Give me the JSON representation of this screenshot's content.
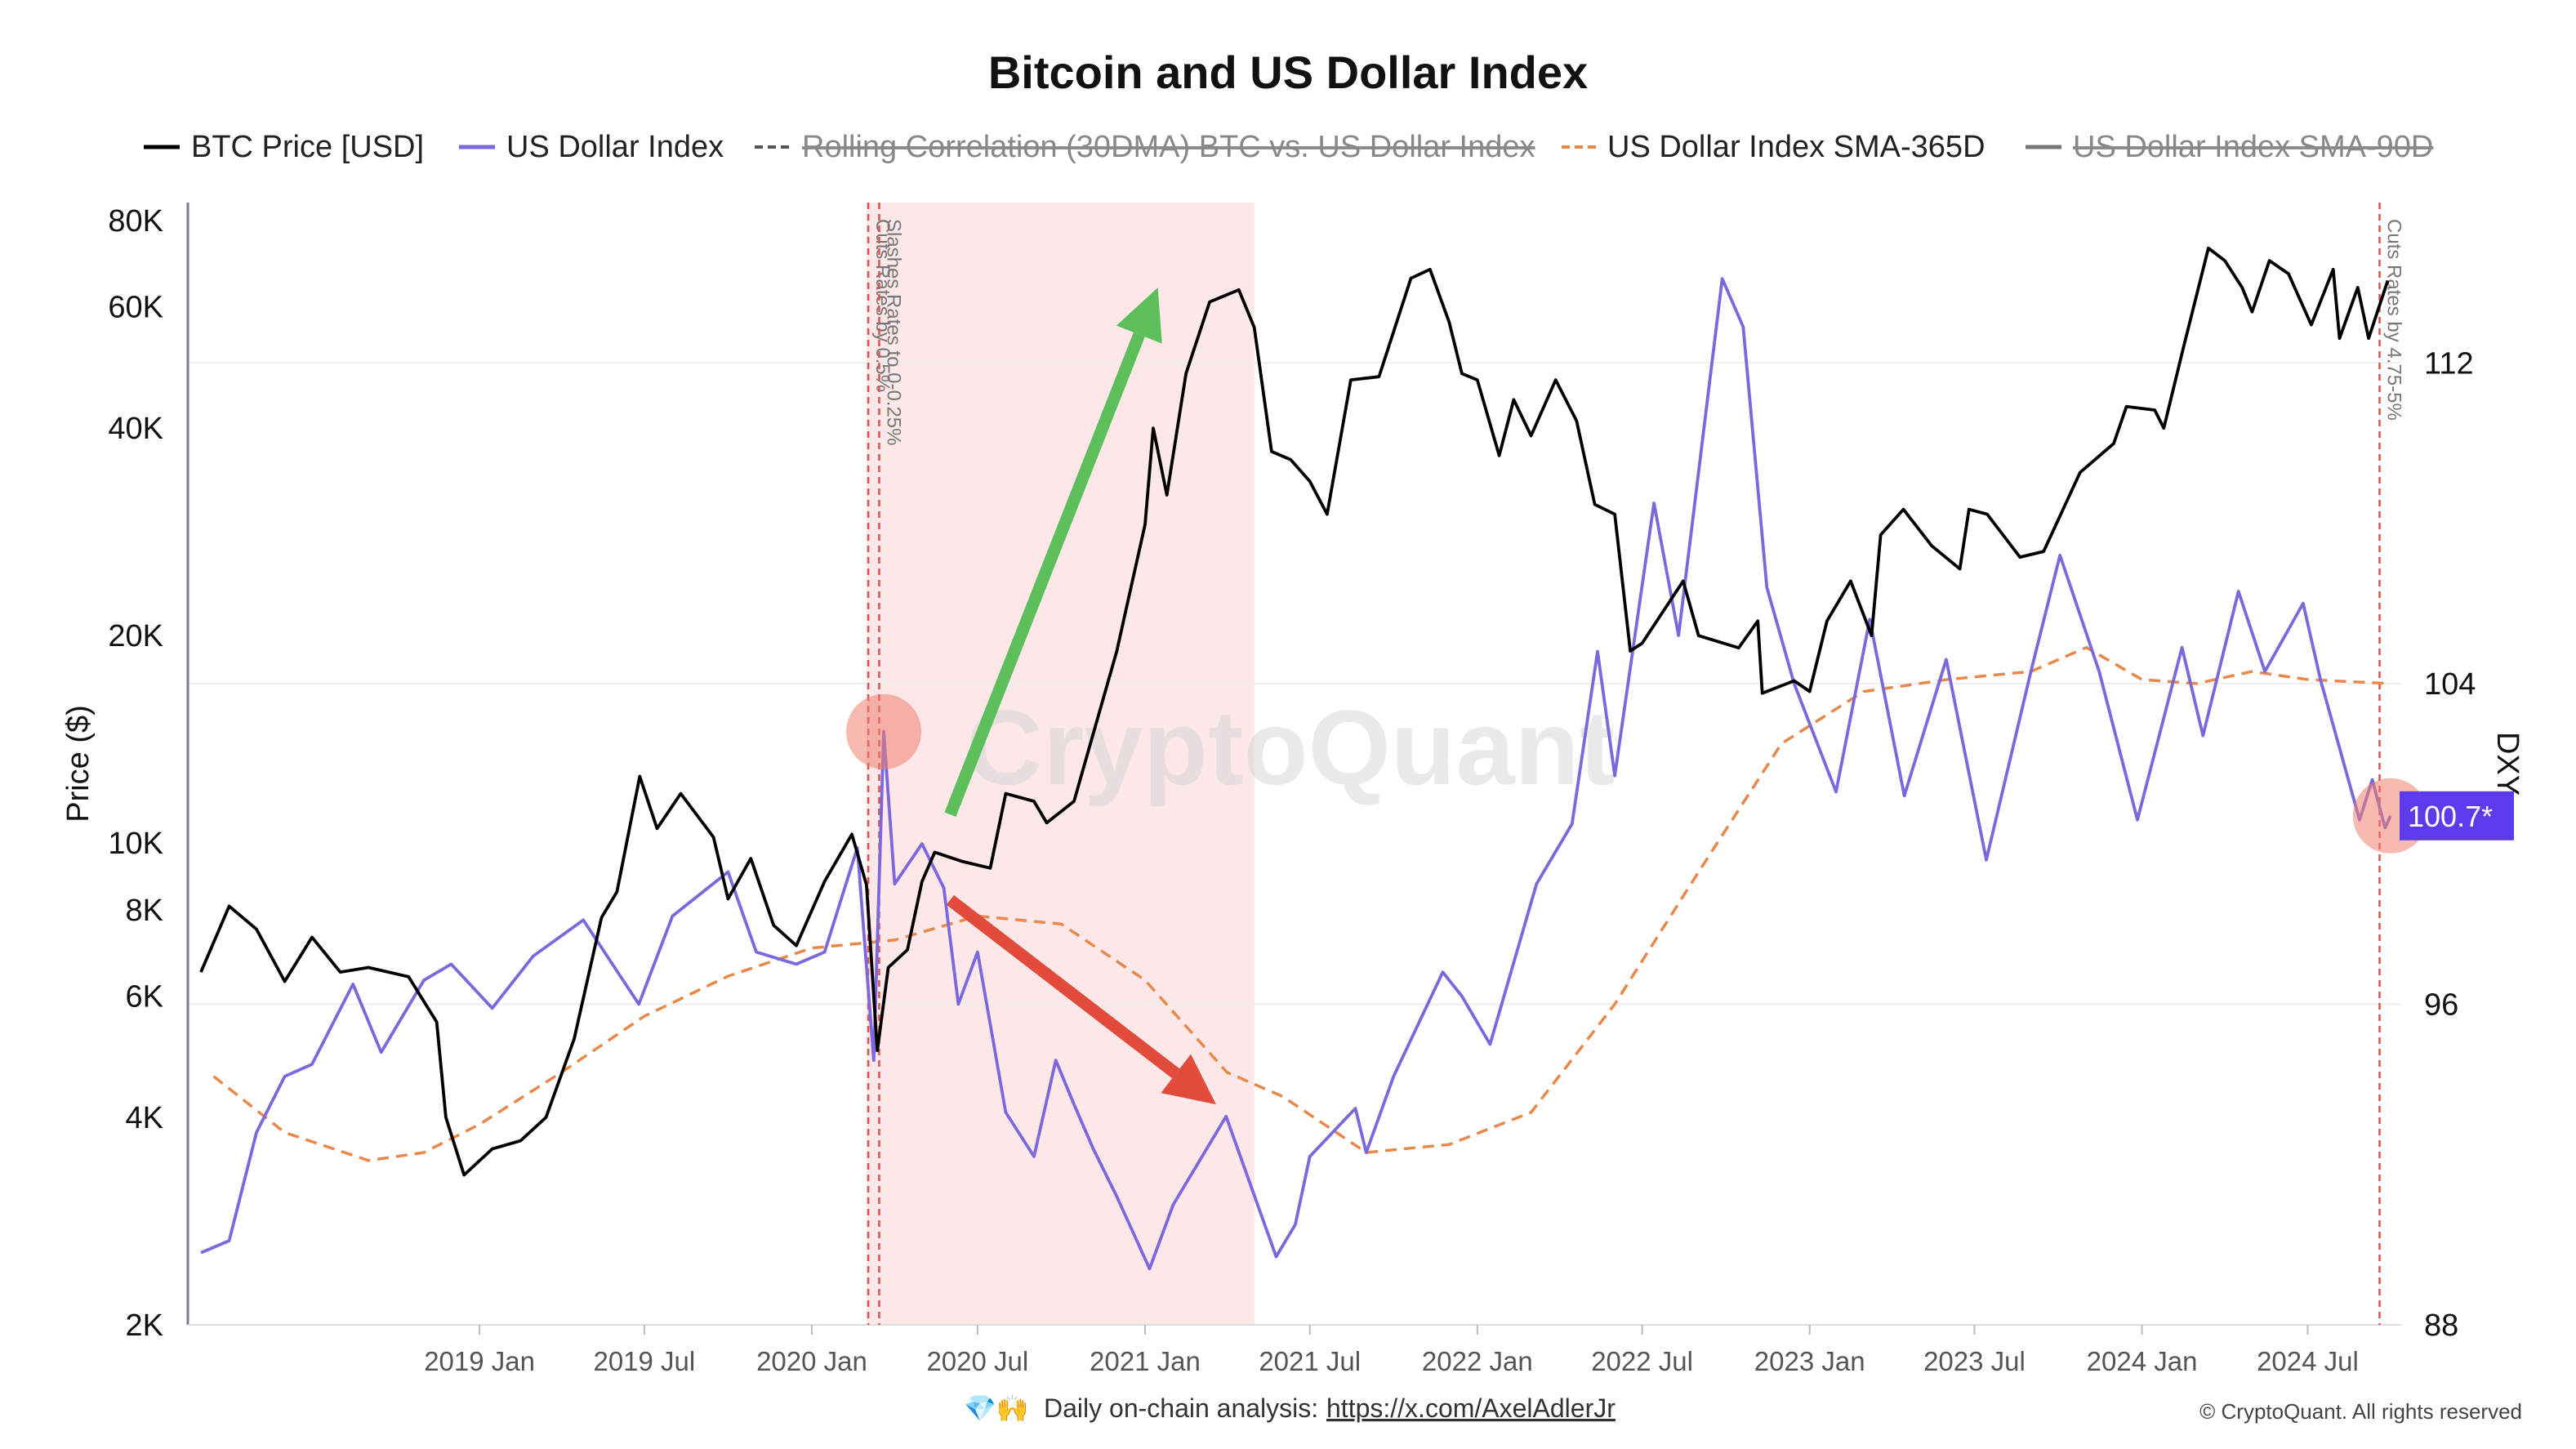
{
  "title": "Bitcoin and US Dollar Index",
  "legend": [
    {
      "label": "BTC Price [USD]",
      "style": "solid",
      "color": "#000000",
      "enabled": true
    },
    {
      "label": "US Dollar Index",
      "style": "solid",
      "color": "#7b68dd",
      "enabled": true
    },
    {
      "label": "Rolling Correlation (30DMA) BTC vs. US Dollar Index",
      "style": "dashed",
      "color": "#555555",
      "enabled": false
    },
    {
      "label": "US Dollar Index SMA-365D",
      "style": "dashed",
      "color": "#e8884a",
      "enabled": true
    },
    {
      "label": "US Dollar Index SMA-90D",
      "style": "solid",
      "color": "#777777",
      "enabled": false
    }
  ],
  "watermark": "CryptoQuant",
  "footer": {
    "emoji": "💎🙌",
    "text": "Daily on-chain analysis:",
    "link": "https://x.com/AxelAdlerJr",
    "copyright": "© CryptoQuant. All rights reserved"
  },
  "chart_data": {
    "type": "line",
    "x_range": [
      "2018-03",
      "2024-10"
    ],
    "x_ticks": [
      "2019 Jan",
      "2019 Jul",
      "2020 Jan",
      "2020 Jul",
      "2021 Jan",
      "2021 Jul",
      "2022 Jan",
      "2022 Jul",
      "2023 Jan",
      "2023 Jul",
      "2024 Jan",
      "2024 Jul"
    ],
    "y_left": {
      "label": "Price ($)",
      "scale": "log",
      "range": [
        2000,
        85000
      ],
      "ticks": [
        2000,
        4000,
        6000,
        8000,
        10000,
        20000,
        40000,
        60000,
        80000
      ],
      "tick_labels": [
        "2K",
        "4K",
        "6K",
        "8K",
        "10K",
        "20K",
        "40K",
        "60K",
        "80K"
      ]
    },
    "y_right": {
      "label": "DXY",
      "range": [
        88,
        116
      ],
      "ticks": [
        88,
        96,
        104,
        112
      ],
      "tick_labels": [
        "88",
        "96",
        "104",
        "112"
      ],
      "current_value_label": "100.7*",
      "badge_color": "#5b3bea"
    },
    "shaded_region": {
      "from": "2020-03",
      "to": "2021-05",
      "color": "#fce8e8"
    },
    "events": [
      {
        "date": "2020-03-03",
        "label": "Cuts Rates by 0.5%",
        "color": "#d9534f"
      },
      {
        "date": "2020-03-15",
        "label": "Slashes Rates to 0-0.25%",
        "color": "#d9534f"
      },
      {
        "date": "2024-09-18",
        "label": "Cuts Rates by 4.75-5%",
        "color": "#d9534f"
      }
    ],
    "highlights": [
      {
        "series": "US Dollar Index",
        "date": "2020-03-20",
        "value": 102.8,
        "color": "#f08070"
      },
      {
        "series": "US Dollar Index",
        "date": "2024-09-30",
        "value": 100.7,
        "color": "#f08070"
      }
    ],
    "arrows": [
      {
        "color": "#5cbf5c",
        "from": {
          "date": "2020-06-01",
          "value": 11000
        },
        "to": {
          "date": "2021-01-15",
          "value": 64000
        }
      },
      {
        "color": "#e24a3b",
        "from": {
          "date": "2020-06-01",
          "value": 98.6
        },
        "to": {
          "date": "2021-03-20",
          "value": 93.5
        }
      }
    ],
    "series": [
      {
        "name": "BTC Price [USD]",
        "axis": "left",
        "color": "#000000",
        "points": [
          [
            "2018-03-01",
            6500
          ],
          [
            "2018-04-01",
            8100
          ],
          [
            "2018-05-01",
            7500
          ],
          [
            "2018-06-01",
            6300
          ],
          [
            "2018-07-01",
            7300
          ],
          [
            "2018-08-01",
            6500
          ],
          [
            "2018-09-01",
            6600
          ],
          [
            "2018-10-15",
            6400
          ],
          [
            "2018-11-15",
            5500
          ],
          [
            "2018-11-25",
            4000
          ],
          [
            "2018-12-15",
            3300
          ],
          [
            "2019-01-15",
            3600
          ],
          [
            "2019-02-15",
            3700
          ],
          [
            "2019-03-15",
            4000
          ],
          [
            "2019-04-15",
            5200
          ],
          [
            "2019-05-15",
            7800
          ],
          [
            "2019-06-01",
            8500
          ],
          [
            "2019-06-26",
            12500
          ],
          [
            "2019-07-15",
            10500
          ],
          [
            "2019-08-10",
            11800
          ],
          [
            "2019-09-15",
            10200
          ],
          [
            "2019-10-01",
            8300
          ],
          [
            "2019-10-26",
            9500
          ],
          [
            "2019-11-20",
            7600
          ],
          [
            "2019-12-15",
            7100
          ],
          [
            "2020-01-15",
            8800
          ],
          [
            "2020-02-14",
            10300
          ],
          [
            "2020-03-01",
            8700
          ],
          [
            "2020-03-13",
            5000
          ],
          [
            "2020-03-25",
            6600
          ],
          [
            "2020-04-15",
            7000
          ],
          [
            "2020-05-01",
            8800
          ],
          [
            "2020-05-15",
            9700
          ],
          [
            "2020-06-15",
            9400
          ],
          [
            "2020-07-15",
            9200
          ],
          [
            "2020-08-01",
            11800
          ],
          [
            "2020-09-01",
            11500
          ],
          [
            "2020-09-15",
            10700
          ],
          [
            "2020-10-15",
            11500
          ],
          [
            "2020-11-01",
            13800
          ],
          [
            "2020-12-01",
            19000
          ],
          [
            "2020-12-15",
            23000
          ],
          [
            "2021-01-01",
            29000
          ],
          [
            "2021-01-10",
            40000
          ],
          [
            "2021-01-25",
            32000
          ],
          [
            "2021-02-15",
            48000
          ],
          [
            "2021-03-13",
            61000
          ],
          [
            "2021-04-14",
            63500
          ],
          [
            "2021-05-01",
            56000
          ],
          [
            "2021-05-20",
            37000
          ],
          [
            "2021-06-10",
            36000
          ],
          [
            "2021-07-01",
            33500
          ],
          [
            "2021-07-20",
            30000
          ],
          [
            "2021-08-15",
            47000
          ],
          [
            "2021-09-15",
            47500
          ],
          [
            "2021-10-20",
            66000
          ],
          [
            "2021-11-10",
            68000
          ],
          [
            "2021-12-01",
            57000
          ],
          [
            "2021-12-15",
            48000
          ],
          [
            "2022-01-01",
            47000
          ],
          [
            "2022-01-25",
            36500
          ],
          [
            "2022-02-10",
            44000
          ],
          [
            "2022-03-01",
            39000
          ],
          [
            "2022-03-28",
            47000
          ],
          [
            "2022-04-20",
            41000
          ],
          [
            "2022-05-10",
            31000
          ],
          [
            "2022-06-01",
            30000
          ],
          [
            "2022-06-18",
            19000
          ],
          [
            "2022-07-01",
            19500
          ],
          [
            "2022-08-15",
            24000
          ],
          [
            "2022-09-01",
            20000
          ],
          [
            "2022-10-15",
            19200
          ],
          [
            "2022-11-05",
            21000
          ],
          [
            "2022-11-10",
            16500
          ],
          [
            "2022-12-15",
            17200
          ],
          [
            "2023-01-01",
            16600
          ],
          [
            "2023-01-20",
            21000
          ],
          [
            "2023-02-15",
            24000
          ],
          [
            "2023-03-10",
            20000
          ],
          [
            "2023-03-20",
            28000
          ],
          [
            "2023-04-14",
            30500
          ],
          [
            "2023-05-15",
            27000
          ],
          [
            "2023-06-15",
            25000
          ],
          [
            "2023-06-25",
            30500
          ],
          [
            "2023-07-15",
            30000
          ],
          [
            "2023-08-20",
            26000
          ],
          [
            "2023-09-15",
            26500
          ],
          [
            "2023-10-25",
            34500
          ],
          [
            "2023-12-01",
            38000
          ],
          [
            "2023-12-15",
            43000
          ],
          [
            "2024-01-15",
            42500
          ],
          [
            "2024-01-25",
            40000
          ],
          [
            "2024-02-15",
            52000
          ],
          [
            "2024-03-14",
            73000
          ],
          [
            "2024-04-01",
            70000
          ],
          [
            "2024-04-20",
            64000
          ],
          [
            "2024-05-01",
            59000
          ],
          [
            "2024-05-20",
            70000
          ],
          [
            "2024-06-10",
            67000
          ],
          [
            "2024-07-05",
            56500
          ],
          [
            "2024-07-29",
            68000
          ],
          [
            "2024-08-05",
            54000
          ],
          [
            "2024-08-25",
            64000
          ],
          [
            "2024-09-06",
            54000
          ],
          [
            "2024-09-27",
            65500
          ]
        ]
      },
      {
        "name": "US Dollar Index",
        "axis": "right",
        "color": "#7b68dd",
        "points": [
          [
            "2018-03-01",
            89.8
          ],
          [
            "2018-04-01",
            90.1
          ],
          [
            "2018-05-01",
            92.8
          ],
          [
            "2018-06-01",
            94.2
          ],
          [
            "2018-07-01",
            94.5
          ],
          [
            "2018-08-15",
            96.5
          ],
          [
            "2018-09-15",
            94.8
          ],
          [
            "2018-11-01",
            96.6
          ],
          [
            "2018-12-01",
            97.0
          ],
          [
            "2019-01-15",
            95.9
          ],
          [
            "2019-03-01",
            97.2
          ],
          [
            "2019-04-25",
            98.1
          ],
          [
            "2019-06-25",
            96.0
          ],
          [
            "2019-08-01",
            98.2
          ],
          [
            "2019-10-01",
            99.3
          ],
          [
            "2019-11-01",
            97.3
          ],
          [
            "2019-12-15",
            97.0
          ],
          [
            "2020-01-15",
            97.3
          ],
          [
            "2020-02-20",
            99.9
          ],
          [
            "2020-03-09",
            94.6
          ],
          [
            "2020-03-20",
            102.8
          ],
          [
            "2020-04-01",
            99.0
          ],
          [
            "2020-05-01",
            100.0
          ],
          [
            "2020-05-25",
            98.9
          ],
          [
            "2020-06-10",
            96.0
          ],
          [
            "2020-07-01",
            97.3
          ],
          [
            "2020-08-01",
            93.3
          ],
          [
            "2020-09-01",
            92.2
          ],
          [
            "2020-09-25",
            94.6
          ],
          [
            "2020-10-15",
            93.5
          ],
          [
            "2020-11-05",
            92.4
          ],
          [
            "2020-12-01",
            91.2
          ],
          [
            "2021-01-06",
            89.4
          ],
          [
            "2021-02-01",
            91.0
          ],
          [
            "2021-03-31",
            93.2
          ],
          [
            "2021-05-25",
            89.7
          ],
          [
            "2021-06-15",
            90.5
          ],
          [
            "2021-07-01",
            92.2
          ],
          [
            "2021-08-20",
            93.4
          ],
          [
            "2021-09-01",
            92.3
          ],
          [
            "2021-10-01",
            94.2
          ],
          [
            "2021-11-24",
            96.8
          ],
          [
            "2021-12-15",
            96.2
          ],
          [
            "2022-01-15",
            95.0
          ],
          [
            "2022-03-07",
            99.0
          ],
          [
            "2022-04-15",
            100.5
          ],
          [
            "2022-05-13",
            104.8
          ],
          [
            "2022-06-01",
            101.7
          ],
          [
            "2022-07-14",
            108.5
          ],
          [
            "2022-08-10",
            105.2
          ],
          [
            "2022-09-27",
            114.1
          ],
          [
            "2022-10-20",
            112.9
          ],
          [
            "2022-11-15",
            106.4
          ],
          [
            "2022-12-15",
            104.0
          ],
          [
            "2023-01-30",
            101.3
          ],
          [
            "2023-03-08",
            105.6
          ],
          [
            "2023-04-15",
            101.2
          ],
          [
            "2023-05-31",
            104.6
          ],
          [
            "2023-07-14",
            99.6
          ],
          [
            "2023-09-01",
            104.3
          ],
          [
            "2023-10-03",
            107.2
          ],
          [
            "2023-11-15",
            104.3
          ],
          [
            "2023-12-27",
            100.6
          ],
          [
            "2024-02-14",
            104.9
          ],
          [
            "2024-03-08",
            102.7
          ],
          [
            "2024-04-16",
            106.3
          ],
          [
            "2024-05-15",
            104.3
          ],
          [
            "2024-06-26",
            106.0
          ],
          [
            "2024-07-15",
            104.1
          ],
          [
            "2024-08-27",
            100.6
          ],
          [
            "2024-09-10",
            101.6
          ],
          [
            "2024-09-24",
            100.4
          ],
          [
            "2024-09-30",
            100.7
          ]
        ]
      },
      {
        "name": "US Dollar Index SMA-365D",
        "axis": "right",
        "color": "#e8884a",
        "style": "dashed",
        "points": [
          [
            "2018-03-15",
            94.2
          ],
          [
            "2018-06-01",
            92.8
          ],
          [
            "2018-09-01",
            92.1
          ],
          [
            "2018-11-01",
            92.3
          ],
          [
            "2019-01-01",
            93.0
          ],
          [
            "2019-04-01",
            94.3
          ],
          [
            "2019-07-01",
            95.7
          ],
          [
            "2019-10-01",
            96.7
          ],
          [
            "2020-01-01",
            97.4
          ],
          [
            "2020-04-01",
            97.6
          ],
          [
            "2020-07-01",
            98.2
          ],
          [
            "2020-10-01",
            98.0
          ],
          [
            "2021-01-01",
            96.6
          ],
          [
            "2021-04-01",
            94.3
          ],
          [
            "2021-06-01",
            93.7
          ],
          [
            "2021-09-01",
            92.3
          ],
          [
            "2021-12-01",
            92.5
          ],
          [
            "2022-03-01",
            93.3
          ],
          [
            "2022-06-01",
            96.0
          ],
          [
            "2022-09-01",
            99.3
          ],
          [
            "2022-12-01",
            102.5
          ],
          [
            "2023-03-01",
            103.8
          ],
          [
            "2023-06-01",
            104.1
          ],
          [
            "2023-09-01",
            104.3
          ],
          [
            "2023-11-01",
            104.9
          ],
          [
            "2024-01-01",
            104.1
          ],
          [
            "2024-03-01",
            104.0
          ],
          [
            "2024-05-01",
            104.3
          ],
          [
            "2024-07-01",
            104.1
          ],
          [
            "2024-09-30",
            104.0
          ]
        ]
      }
    ]
  }
}
